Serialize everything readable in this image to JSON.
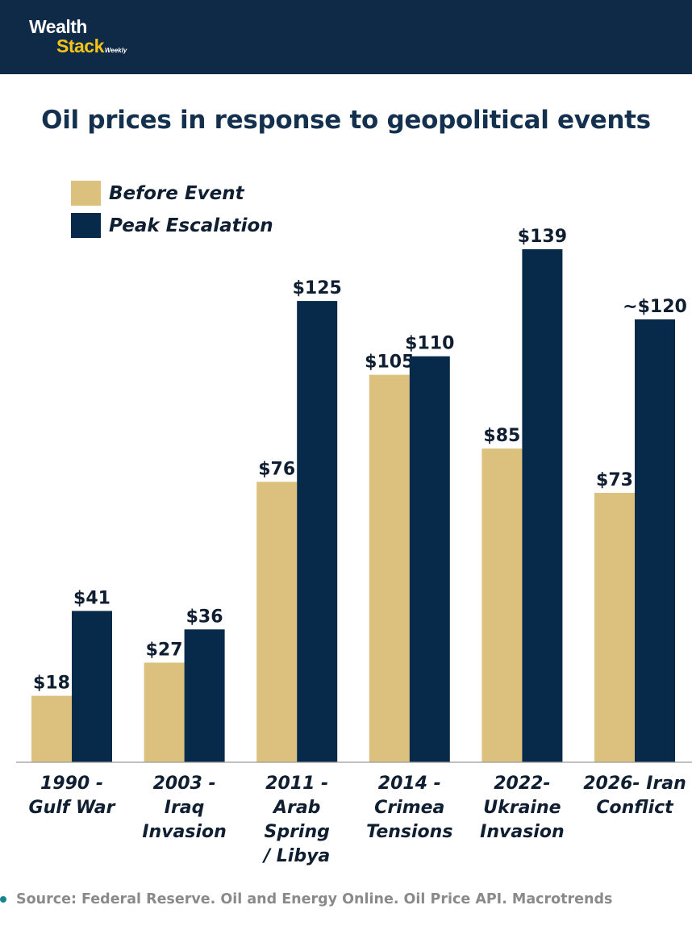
{
  "brand": {
    "name_line1": "Wealth",
    "name_line2": "Stack",
    "name_suffix": "Weekly"
  },
  "colors": {
    "header_bg": "#0e2a47",
    "before": "#dcc17e",
    "peak": "#072a4a",
    "text_dark": "#0f1e30",
    "accent_yellow": "#f3c318",
    "source_dot": "#17838e"
  },
  "chart_data": {
    "type": "bar",
    "title": "Oil prices in response to geopolitical events",
    "xlabel": "",
    "ylabel": "",
    "ylim": [
      0,
      139
    ],
    "grid": false,
    "legend_position": "top-left",
    "categories": [
      [
        "1990 -",
        "Gulf War"
      ],
      [
        "2003 -",
        "Iraq",
        "Invasion"
      ],
      [
        "2011 -",
        "Arab",
        "Spring",
        "/ Libya"
      ],
      [
        "2014 -",
        "Crimea",
        "Tensions"
      ],
      [
        "2022-",
        "Ukraine",
        "Invasion"
      ],
      [
        "2026- Iran",
        "Conflict"
      ]
    ],
    "series": [
      {
        "name": "Before Event",
        "values": [
          18,
          27,
          76,
          105,
          85,
          73
        ],
        "labels": [
          "$18",
          "$27",
          "$76",
          "$105",
          "$85",
          "$73"
        ]
      },
      {
        "name": "Peak Escalation",
        "values": [
          41,
          36,
          125,
          110,
          139,
          120
        ],
        "labels": [
          "$41",
          "$36",
          "$125",
          "$110",
          "$139",
          "~$120"
        ]
      }
    ]
  },
  "source": "Source: Federal Reserve. Oil and Energy Online. Oil Price API. Macrotrends"
}
